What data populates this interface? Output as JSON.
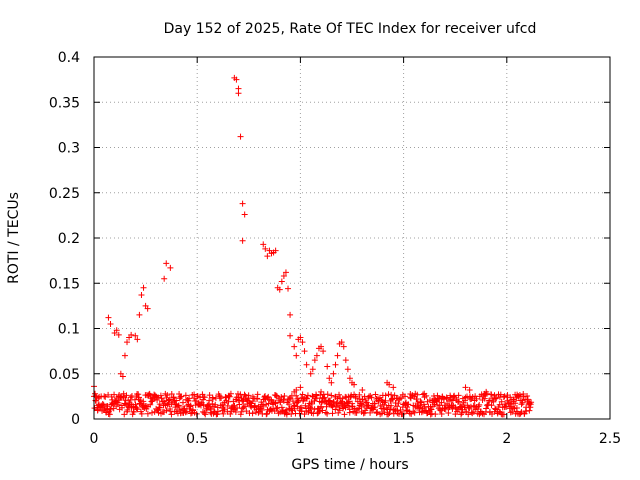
{
  "chart_data": {
    "type": "scatter",
    "title": "Day 152 of 2025, Rate Of TEC Index for receiver ufcd",
    "xlabel": "GPS time / hours",
    "ylabel": "ROTI / TECUs",
    "xlim": [
      0,
      2.5
    ],
    "ylim": [
      0,
      0.4
    ],
    "x_ticks": [
      "0",
      "0.5",
      "1",
      "1.5",
      "2",
      "2.5"
    ],
    "x_tick_values": [
      0,
      0.5,
      1,
      1.5,
      2,
      2.5
    ],
    "y_ticks": [
      "0",
      "0.05",
      "0.1",
      "0.15",
      "0.2",
      "0.25",
      "0.3",
      "0.35",
      "0.4"
    ],
    "y_tick_values": [
      0,
      0.05,
      0.1,
      0.15,
      0.2,
      0.25,
      0.3,
      0.35,
      0.4
    ],
    "grid": true,
    "marker": "+",
    "color": "#ff0000",
    "series": [
      {
        "points": [
          [
            0.0,
            0.036
          ],
          [
            0.0,
            0.025
          ],
          [
            0.01,
            0.02
          ],
          [
            0.02,
            0.015
          ],
          [
            0.03,
            0.012
          ],
          [
            0.07,
            0.112
          ],
          [
            0.08,
            0.105
          ],
          [
            0.1,
            0.095
          ],
          [
            0.11,
            0.098
          ],
          [
            0.12,
            0.093
          ],
          [
            0.13,
            0.05
          ],
          [
            0.14,
            0.047
          ],
          [
            0.15,
            0.07
          ],
          [
            0.16,
            0.085
          ],
          [
            0.17,
            0.09
          ],
          [
            0.18,
            0.093
          ],
          [
            0.2,
            0.092
          ],
          [
            0.21,
            0.088
          ],
          [
            0.22,
            0.115
          ],
          [
            0.23,
            0.137
          ],
          [
            0.24,
            0.145
          ],
          [
            0.25,
            0.125
          ],
          [
            0.26,
            0.122
          ],
          [
            0.34,
            0.155
          ],
          [
            0.35,
            0.172
          ],
          [
            0.37,
            0.167
          ],
          [
            0.68,
            0.377
          ],
          [
            0.69,
            0.375
          ],
          [
            0.7,
            0.365
          ],
          [
            0.7,
            0.36
          ],
          [
            0.71,
            0.312
          ],
          [
            0.72,
            0.238
          ],
          [
            0.73,
            0.226
          ],
          [
            0.72,
            0.197
          ],
          [
            0.82,
            0.193
          ],
          [
            0.83,
            0.188
          ],
          [
            0.84,
            0.18
          ],
          [
            0.85,
            0.186
          ],
          [
            0.86,
            0.183
          ],
          [
            0.87,
            0.184
          ],
          [
            0.88,
            0.186
          ],
          [
            0.89,
            0.145
          ],
          [
            0.9,
            0.143
          ],
          [
            0.91,
            0.152
          ],
          [
            0.92,
            0.158
          ],
          [
            0.93,
            0.162
          ],
          [
            0.94,
            0.144
          ],
          [
            0.95,
            0.115
          ],
          [
            0.95,
            0.092
          ],
          [
            0.97,
            0.08
          ],
          [
            0.98,
            0.07
          ],
          [
            0.99,
            0.088
          ],
          [
            1.0,
            0.09
          ],
          [
            1.01,
            0.085
          ],
          [
            1.02,
            0.075
          ],
          [
            1.03,
            0.06
          ],
          [
            1.05,
            0.05
          ],
          [
            1.06,
            0.055
          ],
          [
            1.07,
            0.065
          ],
          [
            1.08,
            0.07
          ],
          [
            1.09,
            0.078
          ],
          [
            1.1,
            0.08
          ],
          [
            1.11,
            0.075
          ],
          [
            1.13,
            0.058
          ],
          [
            1.14,
            0.045
          ],
          [
            1.15,
            0.04
          ],
          [
            1.16,
            0.05
          ],
          [
            1.17,
            0.06
          ],
          [
            1.18,
            0.07
          ],
          [
            1.19,
            0.083
          ],
          [
            1.2,
            0.085
          ],
          [
            1.21,
            0.08
          ],
          [
            1.22,
            0.065
          ],
          [
            1.23,
            0.055
          ],
          [
            1.24,
            0.045
          ],
          [
            1.25,
            0.04
          ],
          [
            1.26,
            0.038
          ],
          [
            1.42,
            0.04
          ],
          [
            1.43,
            0.038
          ],
          [
            1.45,
            0.035
          ],
          [
            1.8,
            0.035
          ],
          [
            1.82,
            0.032
          ],
          [
            1.0,
            0.035
          ],
          [
            0.98,
            0.032
          ],
          [
            0.97,
            0.03
          ],
          [
            1.1,
            0.03
          ],
          [
            1.3,
            0.032
          ],
          [
            1.6,
            0.028
          ],
          [
            1.9,
            0.03
          ],
          [
            2.05,
            0.027
          ]
        ],
        "band": {
          "x_range": [
            0.0,
            2.12
          ],
          "y_center": [
            0.005,
            0.028
          ],
          "density_per_hour": 420
        }
      }
    ]
  }
}
